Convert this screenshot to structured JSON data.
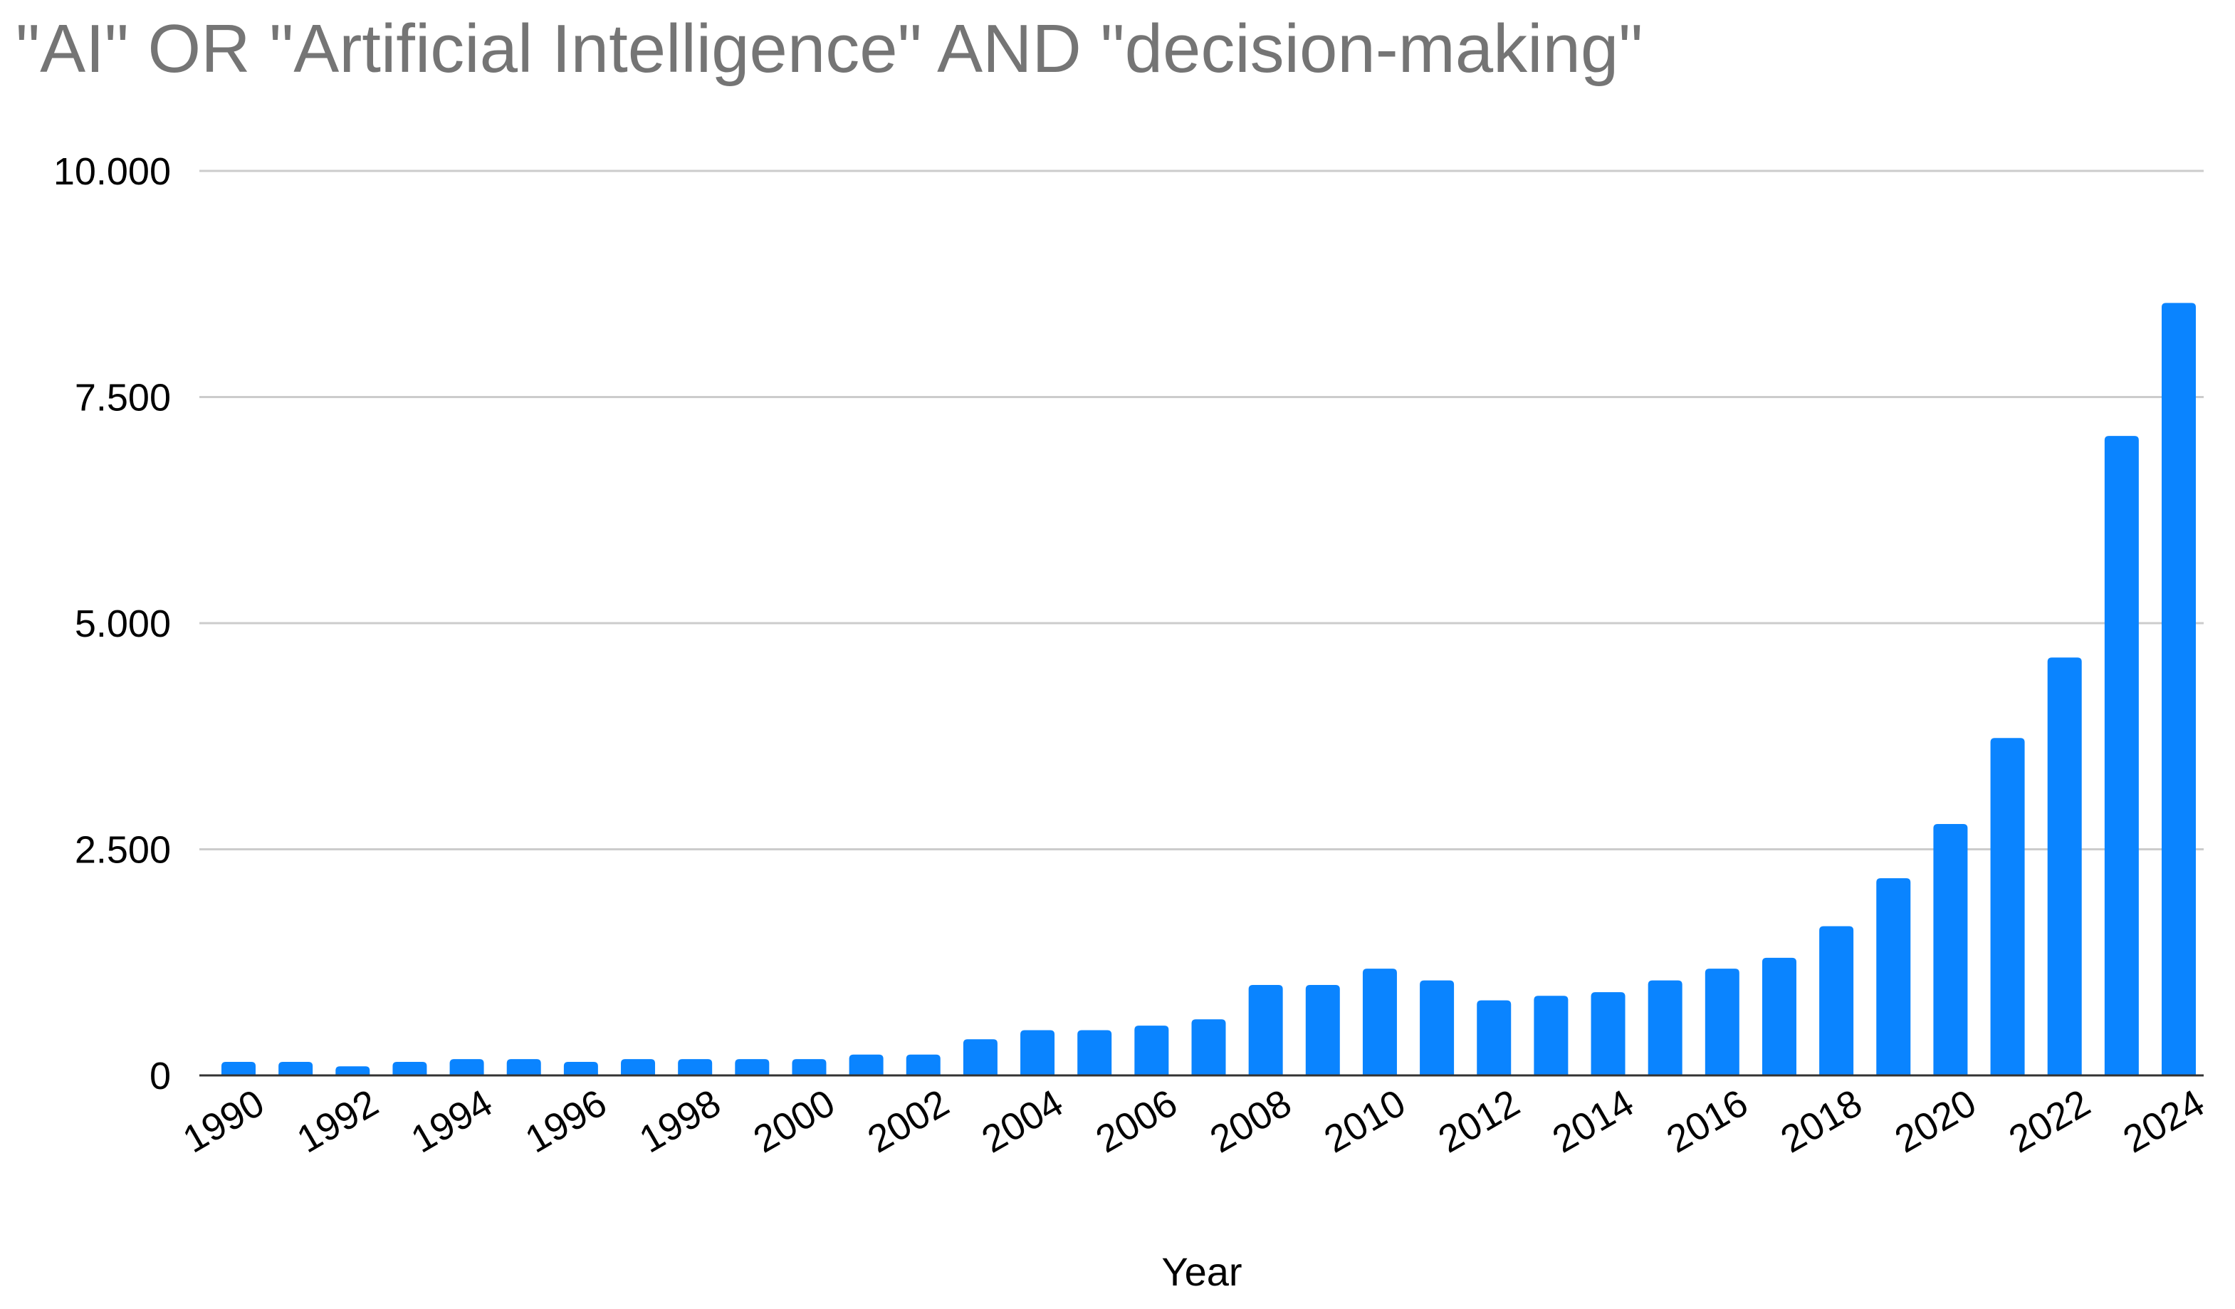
{
  "chart_data": {
    "type": "bar",
    "title": "\"AI\" OR \"Artificial Intelligence\" AND \"decision-making\"",
    "xlabel": "Year",
    "ylabel": "",
    "ylim": [
      0,
      10000
    ],
    "y_ticks": [
      0,
      2500,
      5000,
      7500,
      10000
    ],
    "y_tick_labels": [
      "0",
      "2.500",
      "5.000",
      "7.500",
      "10.000"
    ],
    "x_tick_labels": [
      "1990",
      "1992",
      "1994",
      "1996",
      "1998",
      "2000",
      "2002",
      "2004",
      "2006",
      "2008",
      "2010",
      "2012",
      "2014",
      "2016",
      "2018",
      "2020",
      "2022",
      "2024"
    ],
    "grid": true,
    "legend": "none",
    "bar_color": "#0a84ff",
    "categories": [
      "1990",
      "1991",
      "1992",
      "1993",
      "1994",
      "1995",
      "1996",
      "1997",
      "1998",
      "1999",
      "2000",
      "2001",
      "2002",
      "2003",
      "2004",
      "2005",
      "2006",
      "2007",
      "2008",
      "2009",
      "2010",
      "2011",
      "2012",
      "2013",
      "2014",
      "2015",
      "2016",
      "2017",
      "2018",
      "2019",
      "2020",
      "2021",
      "2022",
      "2023",
      "2024"
    ],
    "values": [
      150,
      150,
      100,
      150,
      180,
      180,
      150,
      180,
      180,
      180,
      180,
      230,
      230,
      400,
      500,
      500,
      550,
      620,
      1000,
      1000,
      1180,
      1050,
      830,
      880,
      920,
      1050,
      1180,
      1300,
      1650,
      2180,
      2780,
      3730,
      4620,
      7070,
      8540
    ]
  }
}
